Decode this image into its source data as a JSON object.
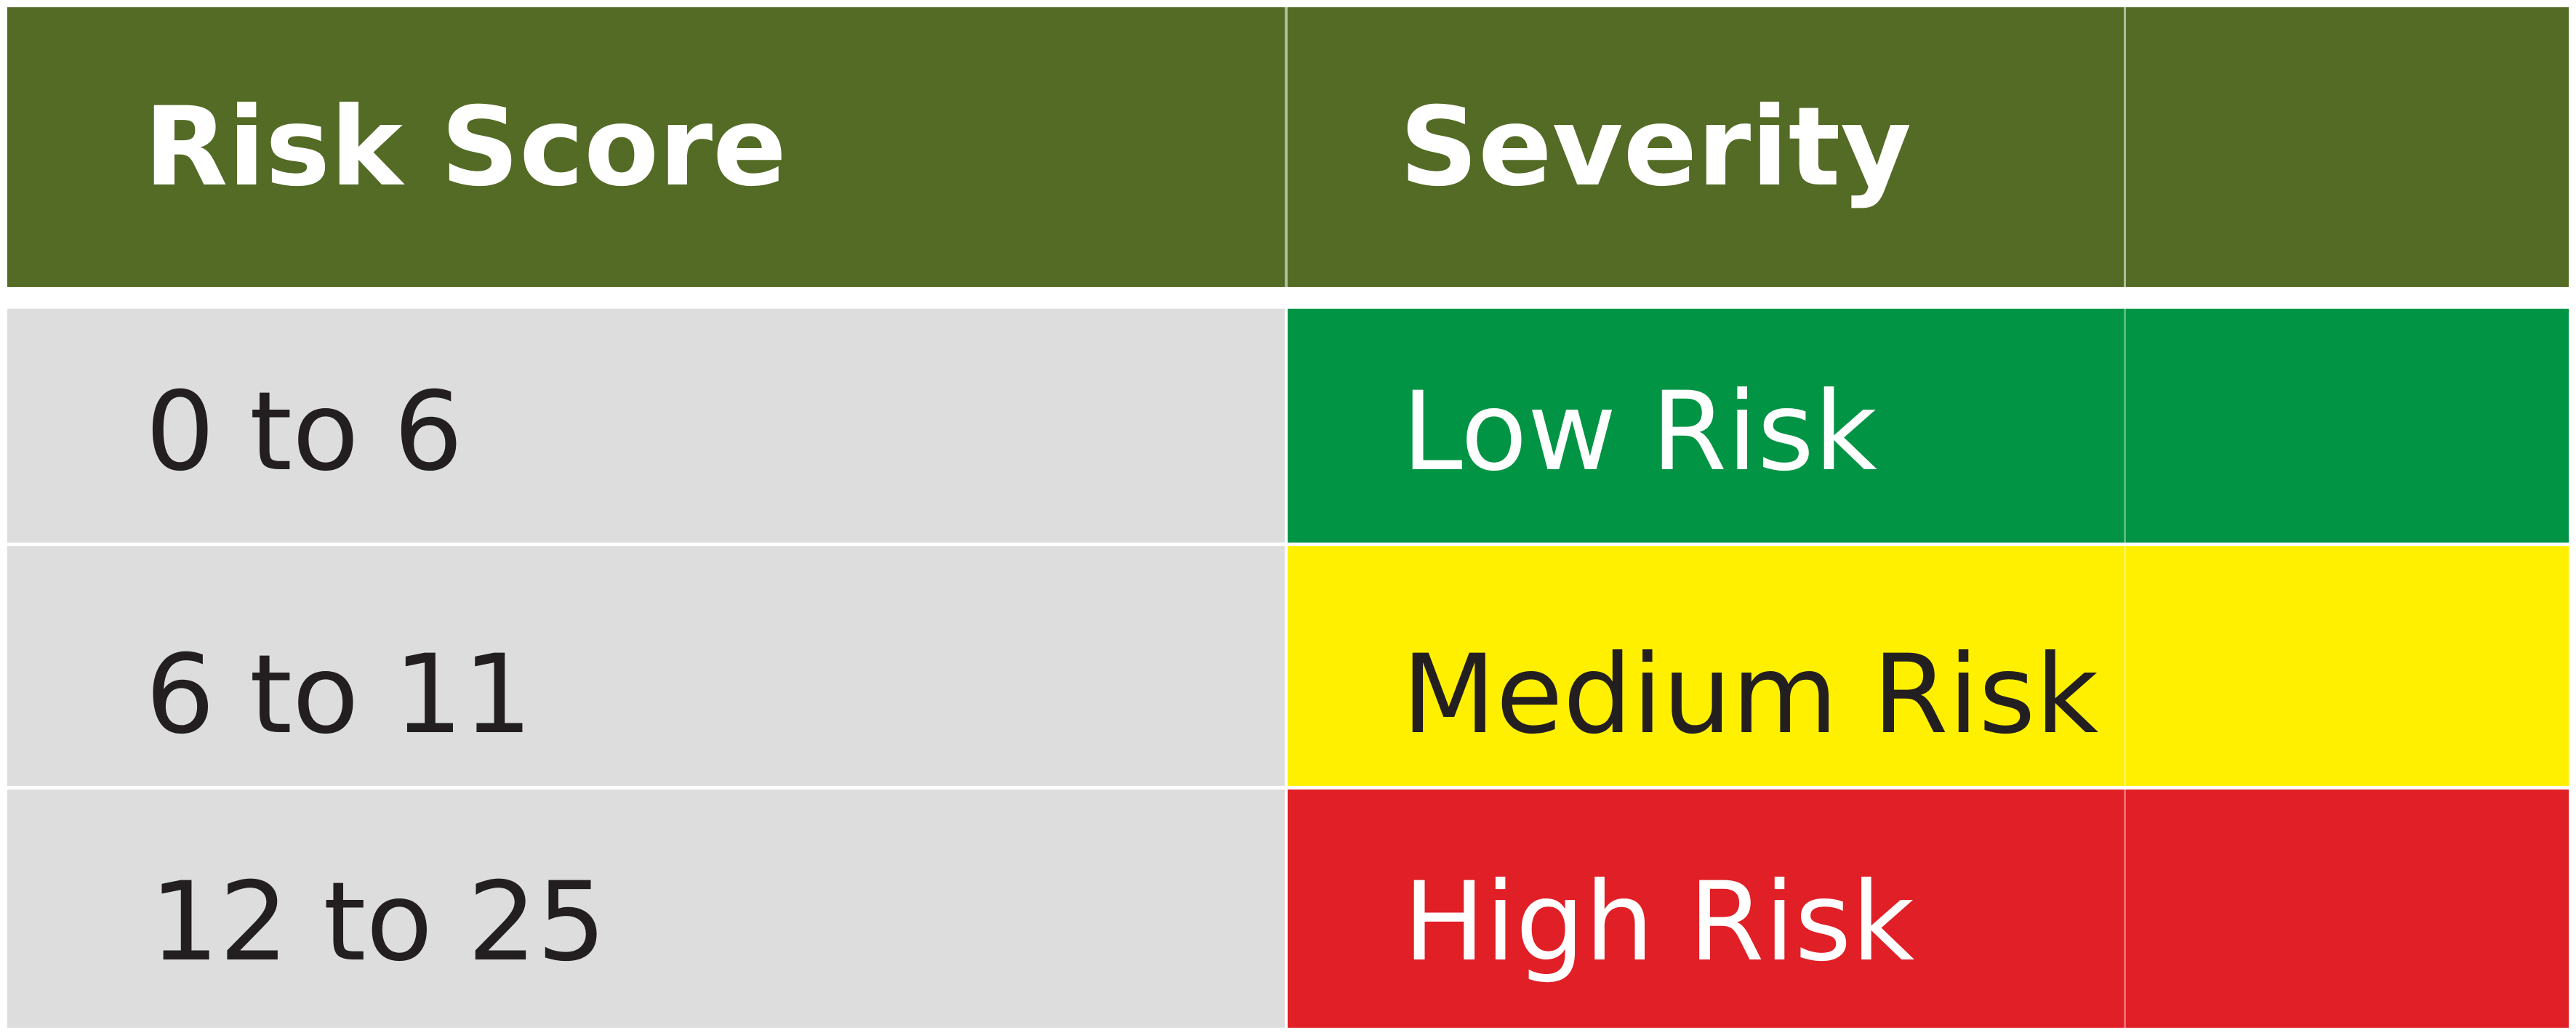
{
  "table": {
    "headers": [
      "Risk Score",
      "Severity"
    ],
    "rows": [
      {
        "score": "0 to 6",
        "severity": "Low Risk"
      },
      {
        "score": "6 to 11",
        "severity": "Medium Risk"
      },
      {
        "score": "12 to 25",
        "severity": "High Risk"
      }
    ]
  },
  "colors": {
    "header_bg": "#536b25",
    "score_bg": "#dcdddc",
    "low": "#009444",
    "medium": "#fff000",
    "high": "#e01f26",
    "dark_text": "#231f20",
    "light_text": "#ffffff"
  }
}
